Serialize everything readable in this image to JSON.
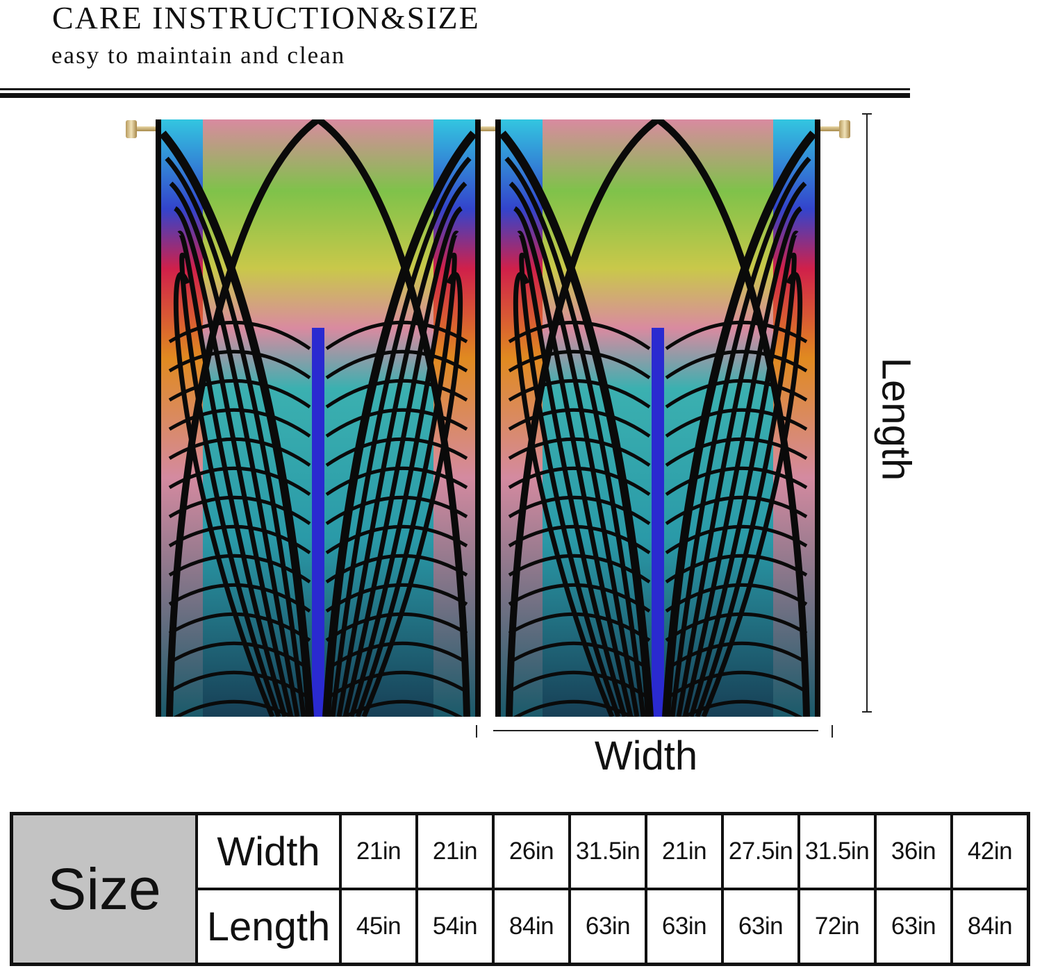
{
  "header": {
    "title": "CARE INSTRUCTION&SIZE",
    "subtitle": "easy to maintain and clean"
  },
  "diagram": {
    "length_label": "Length",
    "width_label": "Width"
  },
  "size_table": {
    "header": "Size",
    "row_labels": [
      "Width",
      "Length"
    ],
    "widths": [
      "21in",
      "21in",
      "26in",
      "31.5in",
      "21in",
      "27.5in",
      "31.5in",
      "36in",
      "42in"
    ],
    "lengths": [
      "45in",
      "54in",
      "84in",
      "63in",
      "63in",
      "63in",
      "72in",
      "63in",
      "84in"
    ]
  },
  "colors": {
    "size_cell": "#c3c3c3",
    "curtain_top": "#e26aa8",
    "curtain_bottom": "#1f6f86",
    "lead_lines": "#0a0a0a"
  }
}
